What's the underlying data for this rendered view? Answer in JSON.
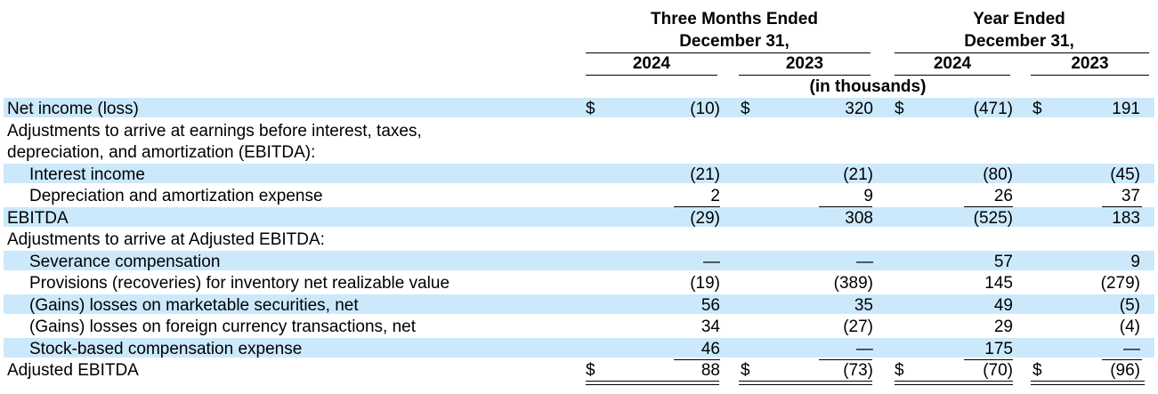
{
  "header": {
    "group1_line1": "Three Months Ended",
    "group1_line2": "December 31,",
    "group2_line1": "Year Ended",
    "group2_line2": "December 31,",
    "col1": "2024",
    "col2": "2023",
    "col3": "2024",
    "col4": "2023",
    "units": "(in thousands)"
  },
  "rows": [
    {
      "label": "Net income (loss)",
      "v1": "(10)",
      "v2": "320",
      "v3": "(471)",
      "v4": "191",
      "dollar": "$"
    },
    {
      "label": "Adjustments to arrive at earnings before interest, taxes,"
    },
    {
      "label": "depreciation, and amortization (EBITDA):"
    },
    {
      "label": "Interest income",
      "v1": "(21)",
      "v2": "(21)",
      "v3": "(80)",
      "v4": "(45)"
    },
    {
      "label": "Depreciation and amortization expense",
      "v1": "2",
      "v2": "9",
      "v3": "26",
      "v4": "37"
    },
    {
      "label": "EBITDA",
      "v1": "(29)",
      "v2": "308",
      "v3": "(525)",
      "v4": "183"
    },
    {
      "label": "Adjustments to arrive at Adjusted EBITDA:"
    },
    {
      "label": "Severance compensation",
      "v1": "—",
      "v2": "—",
      "v3": "57",
      "v4": "9"
    },
    {
      "label": "Provisions (recoveries) for inventory net realizable value",
      "v1": "(19)",
      "v2": "(389)",
      "v3": "145",
      "v4": "(279)"
    },
    {
      "label": "(Gains) losses on marketable securities, net",
      "v1": "56",
      "v2": "35",
      "v3": "49",
      "v4": "(5)"
    },
    {
      "label": "(Gains) losses on foreign currency transactions, net",
      "v1": "34",
      "v2": "(27)",
      "v3": "29",
      "v4": "(4)"
    },
    {
      "label": "Stock-based compensation expense",
      "v1": "46",
      "v2": "—",
      "v3": "175",
      "v4": "—"
    },
    {
      "label": "Adjusted EBITDA",
      "v1": "88",
      "v2": "(73)",
      "v3": "(70)",
      "v4": "(96)",
      "dollar": "$"
    }
  ]
}
